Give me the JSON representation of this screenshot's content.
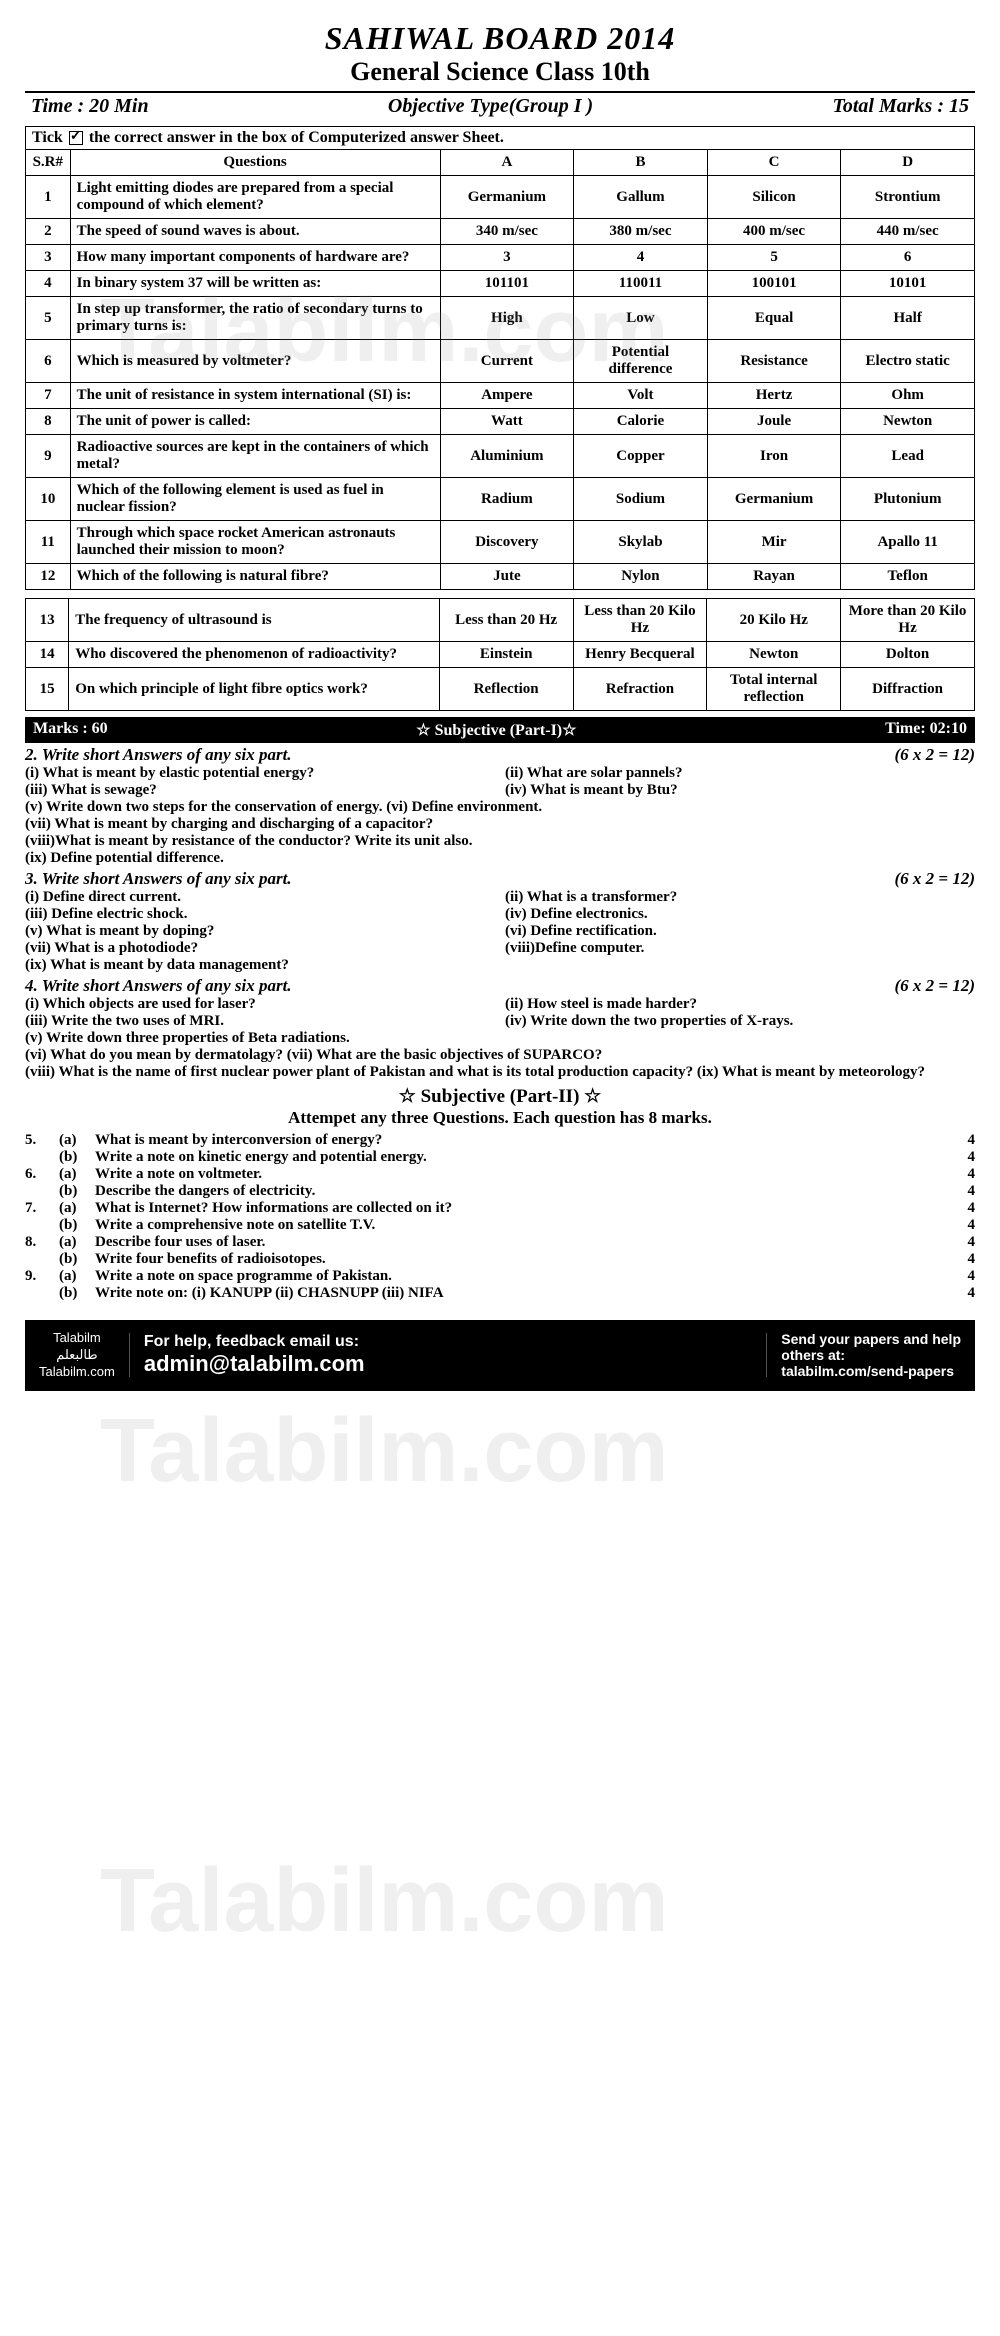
{
  "header": {
    "board": "SAHIWAL BOARD  2014",
    "title": "General Science Class 10th",
    "time": "Time : 20 Min",
    "type": "Objective Type(Group I )",
    "marks": "Total Marks : 15",
    "instruction_pre": "Tick ",
    "instruction_post": " the correct answer in the box of Computerized answer Sheet."
  },
  "mcq_headers": {
    "sr": "S.R#",
    "q": "Questions",
    "a": "A",
    "b": "B",
    "c": "C",
    "d": "D"
  },
  "mcq1": [
    {
      "n": "1",
      "q": "Light emitting diodes are prepared from a special compound of which element?",
      "a": "Germanium",
      "b": "Gallum",
      "c": "Silicon",
      "d": "Strontium"
    },
    {
      "n": "2",
      "q": "The speed of sound waves is about.",
      "a": "340 m/sec",
      "b": "380 m/sec",
      "c": "400 m/sec",
      "d": "440 m/sec"
    },
    {
      "n": "3",
      "q": "How many important components of hardware are?",
      "a": "3",
      "b": "4",
      "c": "5",
      "d": "6"
    },
    {
      "n": "4",
      "q": "In binary system 37 will be written as:",
      "a": "101101",
      "b": "110011",
      "c": "100101",
      "d": "10101"
    },
    {
      "n": "5",
      "q": "In step up transformer, the ratio of secondary turns to primary turns is:",
      "a": "High",
      "b": "Low",
      "c": "Equal",
      "d": "Half"
    },
    {
      "n": "6",
      "q": "Which is measured by voltmeter?",
      "a": "Current",
      "b": "Potential difference",
      "c": "Resistance",
      "d": "Electro static"
    },
    {
      "n": "7",
      "q": "The unit of resistance in system international (SI) is:",
      "a": "Ampere",
      "b": "Volt",
      "c": "Hertz",
      "d": "Ohm"
    },
    {
      "n": "8",
      "q": "The unit of power is called:",
      "a": "Watt",
      "b": "Calorie",
      "c": "Joule",
      "d": "Newton"
    },
    {
      "n": "9",
      "q": "Radioactive sources are kept in the containers of which metal?",
      "a": "Aluminium",
      "b": "Copper",
      "c": "Iron",
      "d": "Lead"
    },
    {
      "n": "10",
      "q": "Which of the following element is used as fuel in nuclear fission?",
      "a": "Radium",
      "b": "Sodium",
      "c": "Germanium",
      "d": "Plutonium"
    },
    {
      "n": "11",
      "q": "Through which space rocket American astronauts launched their mission to moon?",
      "a": "Discovery",
      "b": "Skylab",
      "c": "Mir",
      "d": "Apallo 11"
    },
    {
      "n": "12",
      "q": "Which of the following is natural fibre?",
      "a": "Jute",
      "b": "Nylon",
      "c": "Rayan",
      "d": "Teflon"
    }
  ],
  "mcq2": [
    {
      "n": "13",
      "q": "The frequency of ultrasound is",
      "a": "Less than 20 Hz",
      "b": "Less than 20 Kilo Hz",
      "c": "20 Kilo Hz",
      "d": "More than 20 Kilo Hz"
    },
    {
      "n": "14",
      "q": "Who discovered the phenomenon of radioactivity?",
      "a": "Einstein",
      "b": "Henry Becqueral",
      "c": "Newton",
      "d": "Dolton"
    },
    {
      "n": "15",
      "q": "On which principle of light fibre optics work?",
      "a": "Reflection",
      "b": "Refraction",
      "c": "Total internal reflection",
      "d": "Diffraction"
    }
  ],
  "subj_bar": {
    "left": "Marks : 60",
    "mid": "☆ Subjective (Part-I)☆",
    "right": "Time: 02:10"
  },
  "q2": {
    "head": "2.  Write short Answers of any six part.",
    "marks": "(6 x 2 = 12)",
    "items": [
      {
        "t": "(i)   What is meant by elastic potential energy?",
        "full": false
      },
      {
        "t": "(ii)  What are solar pannels?",
        "full": false
      },
      {
        "t": "(iii) What is sewage?",
        "full": false
      },
      {
        "t": "(iv)  What is meant by Btu?",
        "full": false
      },
      {
        "t": "(v)  Write down two steps for the conservation of energy.      (vi)  Define environment.",
        "full": true
      },
      {
        "t": "(vii) What is meant by charging and discharging of a capacitor?",
        "full": true
      },
      {
        "t": "(viii)What is meant by resistance of the conductor? Write its unit also.",
        "full": true
      },
      {
        "t": "(ix)  Define potential difference.",
        "full": true
      }
    ]
  },
  "q3": {
    "head": "3.  Write short Answers of any six part.",
    "marks": "(6 x 2 = 12)",
    "items": [
      {
        "t": "(i)   Define direct current.",
        "full": false
      },
      {
        "t": "(ii)  What is a transformer?",
        "full": false
      },
      {
        "t": "(iii) Define electric shock.",
        "full": false
      },
      {
        "t": "(iv)  Define electronics.",
        "full": false
      },
      {
        "t": "(v)  What is meant by doping?",
        "full": false
      },
      {
        "t": "(vi)  Define rectification.",
        "full": false
      },
      {
        "t": "(vii) What is a photodiode?",
        "full": false
      },
      {
        "t": "(viii)Define computer.",
        "full": false
      },
      {
        "t": "(ix)  What is meant by data management?",
        "full": true
      }
    ]
  },
  "q4": {
    "head": "4.  Write short Answers of any six part.",
    "marks": "(6 x 2 = 12)",
    "items": [
      {
        "t": "(i)   Which objects are used for laser?",
        "full": false
      },
      {
        "t": "(ii)  How steel is made harder?",
        "full": false
      },
      {
        "t": "(iii) Write the two uses of MRI.",
        "full": false
      },
      {
        "t": "(iv)  Write down the two properties of X-rays.",
        "full": false
      },
      {
        "t": "(v)  Write down three properties of Beta radiations.",
        "full": true
      },
      {
        "t": "(vi)  What do you mean by dermatolagy?  (vii) What are the basic objectives of SUPARCO?",
        "full": true
      },
      {
        "t": "(viii) What is the name of first nuclear power plant of Pakistan and what is its total production capacity?                                          (ix)  What is meant by meteorology?",
        "full": true
      }
    ]
  },
  "part2": {
    "title": "☆ Subjective (Part-II) ☆",
    "sub": "Attempet any three Questions.  Each question has 8 marks."
  },
  "long": [
    {
      "n": "5.",
      "l": "(a)",
      "t": "What is meant by interconversion of energy?",
      "m": "4"
    },
    {
      "n": "",
      "l": "(b)",
      "t": "Write a note on kinetic energy and potential energy.",
      "m": "4"
    },
    {
      "n": "6.",
      "l": "(a)",
      "t": "Write a note on voltmeter.",
      "m": "4"
    },
    {
      "n": "",
      "l": "(b)",
      "t": "Describe the dangers of electricity.",
      "m": "4"
    },
    {
      "n": "7.",
      "l": "(a)",
      "t": "What is Internet? How informations are collected on it?",
      "m": "4"
    },
    {
      "n": "",
      "l": "(b)",
      "t": "Write a comprehensive note on satellite T.V.",
      "m": "4"
    },
    {
      "n": "8.",
      "l": "(a)",
      "t": "Describe four uses of laser.",
      "m": "4"
    },
    {
      "n": "",
      "l": "(b)",
      "t": "Write four benefits of radioisotopes.",
      "m": "4"
    },
    {
      "n": "9.",
      "l": "(a)",
      "t": "Write a note on space programme of Pakistan.",
      "m": "4"
    },
    {
      "n": "",
      "l": "(b)",
      "t": "Write note on: (i) KANUPP (ii)   CHASNUPP          (iii)  NIFA",
      "m": "4"
    }
  ],
  "footer": {
    "brand1": "Talabilm",
    "brand2": "طالبعلم",
    "brand3": "Talabilm.com",
    "mid1": "For help, feedback email us:",
    "mid2": "admin@talabilm.com",
    "r1": "Send your papers and help",
    "r2": "others at:",
    "r3": "talabilm.com/send-papers"
  },
  "watermark": "Talabilm.com"
}
